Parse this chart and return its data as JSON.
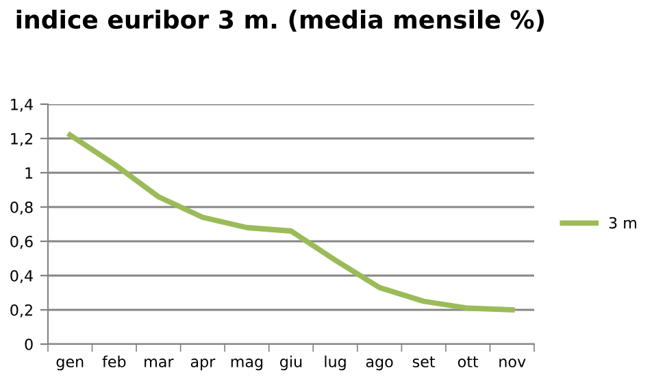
{
  "chart_data": {
    "type": "line",
    "title": "indice euribor 3 m. (media mensile %)",
    "categories": [
      "gen",
      "feb",
      "mar",
      "apr",
      "mag",
      "giu",
      "lug",
      "ago",
      "set",
      "ott",
      "nov"
    ],
    "series": [
      {
        "name": "3 m",
        "color": "#9bbb59",
        "values": [
          1.22,
          1.05,
          0.86,
          0.74,
          0.68,
          0.66,
          0.49,
          0.33,
          0.25,
          0.21,
          0.2
        ]
      }
    ],
    "ylim": [
      0,
      1.4
    ],
    "yticks": [
      0,
      {
        "value": 0.2,
        "label": "0,2"
      },
      {
        "value": 0.4,
        "label": "0,4"
      },
      {
        "value": 0.6,
        "label": "0,6"
      },
      {
        "value": 0.8,
        "label": "0,8"
      },
      1,
      {
        "value": 1.2,
        "label": "1,2"
      },
      {
        "value": 1.4,
        "label": "1,4"
      }
    ],
    "grid": "y",
    "legend": "right",
    "marker": "none",
    "line_style": "solid"
  }
}
